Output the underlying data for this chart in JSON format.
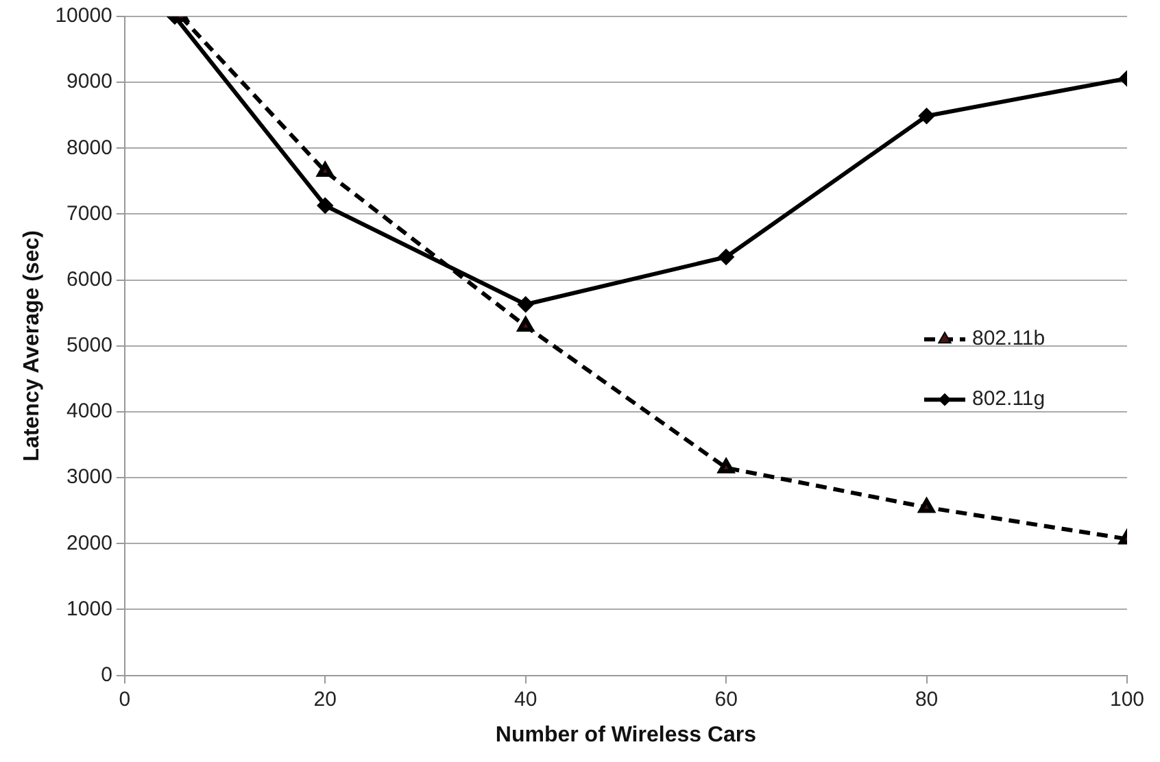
{
  "chart_data": {
    "type": "line",
    "xlabel": "Number of Wireless Cars",
    "ylabel": "Latency Average (sec)",
    "xlim": [
      0,
      100
    ],
    "xticks": [
      0,
      20,
      40,
      60,
      80,
      100
    ],
    "ylim": [
      0,
      10000
    ],
    "yticks": [
      0,
      1000,
      2000,
      3000,
      4000,
      5000,
      6000,
      7000,
      8000,
      9000,
      10000
    ],
    "grid": "y",
    "legend": "right",
    "series": [
      {
        "name": "802.11b",
        "color": "#000000",
        "marker": "triangle",
        "line_style": "dashed",
        "x": [
          5.6,
          20,
          40,
          60,
          80,
          100
        ],
        "values": [
          10000,
          7650,
          5300,
          3150,
          2550,
          2070
        ]
      },
      {
        "name": "802.11g",
        "color": "#000000",
        "marker": "diamond",
        "line_style": "solid",
        "x": [
          5,
          20,
          40,
          60,
          80,
          100
        ],
        "values": [
          10000,
          7130,
          5630,
          6350,
          8490,
          9060
        ]
      }
    ]
  }
}
